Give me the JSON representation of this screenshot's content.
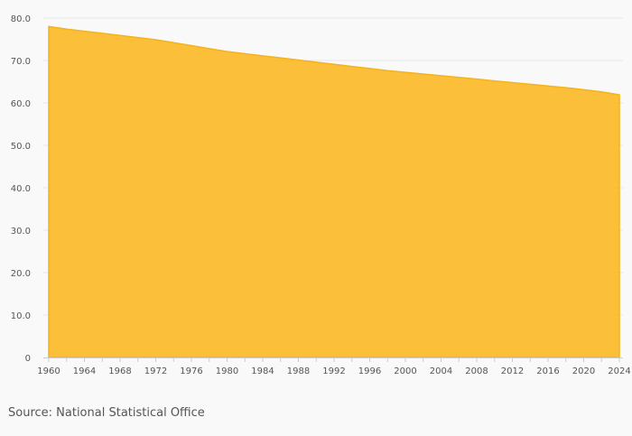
{
  "chart_data": {
    "type": "area",
    "title": "",
    "xlabel": "",
    "ylabel": "",
    "x": [
      1960,
      1962,
      1964,
      1966,
      1968,
      1970,
      1972,
      1974,
      1976,
      1978,
      1980,
      1982,
      1984,
      1986,
      1988,
      1990,
      1992,
      1994,
      1996,
      1998,
      2000,
      2002,
      2004,
      2006,
      2008,
      2010,
      2012,
      2014,
      2016,
      2018,
      2020,
      2022,
      2024
    ],
    "series": [
      {
        "values": [
          78.0,
          77.4,
          76.9,
          76.4,
          75.9,
          75.4,
          74.9,
          74.2,
          73.5,
          72.8,
          72.1,
          71.6,
          71.1,
          70.6,
          70.1,
          69.6,
          69.1,
          68.6,
          68.1,
          67.6,
          67.2,
          66.8,
          66.4,
          66.0,
          65.6,
          65.2,
          64.8,
          64.4,
          64.0,
          63.6,
          63.1,
          62.6,
          61.9
        ],
        "color": "#fbbc2e"
      }
    ],
    "ylim": [
      0,
      80
    ],
    "y_ticks": [
      "0",
      "10.0",
      "20.0",
      "30.0",
      "40.0",
      "50.0",
      "60.0",
      "70.0",
      "80.0"
    ],
    "x_tick_labels": [
      "1960",
      "1964",
      "1968",
      "1972",
      "1976",
      "1980",
      "1984",
      "1988",
      "1992",
      "1996",
      "2000",
      "2004",
      "2008",
      "2012",
      "2016",
      "2020",
      "2024"
    ],
    "grid": true,
    "legend": "none"
  },
  "source": "Source: National Statistical Office"
}
